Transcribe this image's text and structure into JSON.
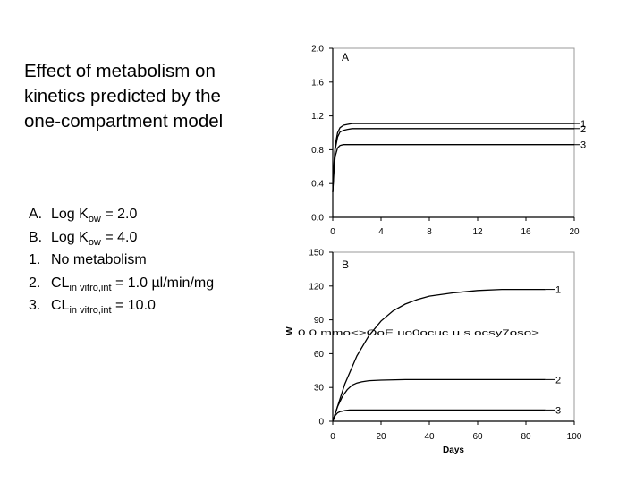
{
  "slide": {
    "title_lines": [
      "Effect of metabolism on",
      "kinetics predicted by the",
      "one-compartment model"
    ],
    "legend": [
      {
        "key": "A.",
        "pre": "Log K",
        "sub": "ow",
        "post": " = 2.0"
      },
      {
        "key": "B.",
        "pre": "Log K",
        "sub": "ow",
        "post": " = 4.0"
      },
      {
        "key": "1.",
        "pre": "No metabolism",
        "sub": "",
        "post": ""
      },
      {
        "key": "2.",
        "pre": "CL",
        "sub": "in vitro,int",
        "post": " = 1.0 µl/min/mg"
      },
      {
        "key": "3.",
        "pre": "CL",
        "sub": "in vitro,int",
        "post": " = 10.0"
      }
    ]
  },
  "chart_data": [
    {
      "type": "line",
      "panel_label": "A",
      "xlim": [
        0,
        20
      ],
      "ylim": [
        0,
        2.0
      ],
      "xticks": [
        0,
        4,
        8,
        12,
        16,
        20
      ],
      "yticks": [
        0.0,
        0.4,
        0.8,
        1.2,
        1.6,
        2.0
      ],
      "ytick_labels": [
        "0.0",
        "0.4",
        "0.8",
        "1.2",
        "1.6",
        "2.0"
      ],
      "xlabel": "",
      "ylabel": "",
      "grid": false,
      "series": [
        {
          "label": "1",
          "x": [
            0,
            0.1,
            0.2,
            0.4,
            0.6,
            0.9,
            1.2,
            1.6,
            2,
            4,
            8,
            12,
            16,
            20
          ],
          "y": [
            0.3,
            0.65,
            0.85,
            1.0,
            1.06,
            1.09,
            1.1,
            1.11,
            1.11,
            1.11,
            1.11,
            1.11,
            1.11,
            1.11
          ]
        },
        {
          "label": "2",
          "x": [
            0,
            0.1,
            0.2,
            0.4,
            0.6,
            0.9,
            1.2,
            1.6,
            2,
            4,
            8,
            12,
            16,
            20
          ],
          "y": [
            0.3,
            0.62,
            0.8,
            0.95,
            1.01,
            1.03,
            1.04,
            1.05,
            1.05,
            1.05,
            1.05,
            1.05,
            1.05,
            1.05
          ]
        },
        {
          "label": "3",
          "x": [
            0,
            0.1,
            0.2,
            0.4,
            0.6,
            0.9,
            1.2,
            1.6,
            2,
            4,
            8,
            12,
            16,
            20
          ],
          "y": [
            0.3,
            0.55,
            0.72,
            0.82,
            0.85,
            0.86,
            0.86,
            0.86,
            0.86,
            0.86,
            0.86,
            0.86,
            0.86,
            0.86
          ]
        }
      ]
    },
    {
      "type": "line",
      "panel_label": "B",
      "xlim": [
        0,
        100
      ],
      "ylim": [
        0,
        150
      ],
      "xticks": [
        0,
        20,
        40,
        60,
        80,
        100
      ],
      "yticks": [
        0,
        30,
        60,
        90,
        120,
        150
      ],
      "ytick_labels": [
        "0",
        "30",
        "60",
        "90",
        "120",
        "150"
      ],
      "xlabel": "Days",
      "ylabel": "W",
      "ylabel_garbled_text": "0.0 mmo<>OoE.uo0ocuc.u.s.ocsy7oso>",
      "grid": false,
      "series": [
        {
          "label": "1",
          "x": [
            0,
            5,
            10,
            15,
            20,
            25,
            30,
            35,
            40,
            50,
            60,
            70,
            80,
            88
          ],
          "y": [
            0,
            33,
            58,
            76,
            89,
            98,
            104,
            108,
            111,
            114,
            116,
            117,
            117,
            117
          ]
        },
        {
          "label": "2",
          "x": [
            0,
            2,
            4,
            6,
            8,
            10,
            12,
            15,
            20,
            30,
            40,
            60,
            80,
            88
          ],
          "y": [
            0,
            13,
            22,
            28,
            32,
            34,
            35,
            36,
            36.5,
            37,
            37,
            37,
            37,
            37
          ]
        },
        {
          "label": "3",
          "x": [
            0,
            1,
            2,
            3,
            4,
            5,
            7,
            10,
            20,
            40,
            60,
            80,
            88
          ],
          "y": [
            0,
            5,
            7.5,
            8.5,
            9,
            9.5,
            10,
            10,
            10,
            10,
            10,
            10,
            10
          ]
        }
      ]
    }
  ]
}
